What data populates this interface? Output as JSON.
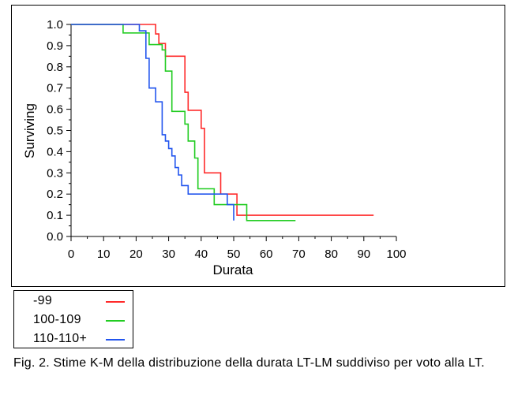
{
  "chart_data": {
    "type": "line",
    "step": true,
    "xlabel": "Durata",
    "ylabel": "Surviving",
    "xlim": [
      0,
      100
    ],
    "ylim": [
      0,
      1
    ],
    "x_ticks": [
      "0",
      "10",
      "20",
      "30",
      "40",
      "50",
      "60",
      "70",
      "80",
      "90",
      "100"
    ],
    "y_ticks": [
      "0.0",
      "0.1",
      "0.2",
      "0.3",
      "0.4",
      "0.5",
      "0.6",
      "0.7",
      "0.8",
      "0.9",
      "1.0"
    ],
    "grid": false,
    "legend_position": "below",
    "series": [
      {
        "name": "-99",
        "color": "#ff2a2a",
        "points": [
          [
            0,
            1.0
          ],
          [
            26,
            1.0
          ],
          [
            26,
            0.955
          ],
          [
            27,
            0.955
          ],
          [
            27,
            0.91
          ],
          [
            29,
            0.91
          ],
          [
            29,
            0.85
          ],
          [
            35,
            0.85
          ],
          [
            35,
            0.68
          ],
          [
            36,
            0.68
          ],
          [
            36,
            0.595
          ],
          [
            40,
            0.595
          ],
          [
            40,
            0.51
          ],
          [
            41,
            0.51
          ],
          [
            41,
            0.3
          ],
          [
            46,
            0.3
          ],
          [
            46,
            0.2
          ],
          [
            51,
            0.2
          ],
          [
            51,
            0.1
          ],
          [
            93,
            0.1
          ]
        ]
      },
      {
        "name": "100-109",
        "color": "#22cc22",
        "points": [
          [
            0,
            1.0
          ],
          [
            16,
            1.0
          ],
          [
            16,
            0.96
          ],
          [
            24,
            0.96
          ],
          [
            24,
            0.905
          ],
          [
            28,
            0.905
          ],
          [
            28,
            0.88
          ],
          [
            29,
            0.88
          ],
          [
            29,
            0.78
          ],
          [
            31,
            0.78
          ],
          [
            31,
            0.59
          ],
          [
            35,
            0.59
          ],
          [
            35,
            0.53
          ],
          [
            36,
            0.53
          ],
          [
            36,
            0.45
          ],
          [
            38,
            0.45
          ],
          [
            38,
            0.37
          ],
          [
            39,
            0.37
          ],
          [
            39,
            0.225
          ],
          [
            44,
            0.225
          ],
          [
            44,
            0.15
          ],
          [
            54,
            0.15
          ],
          [
            54,
            0.075
          ],
          [
            69,
            0.075
          ]
        ]
      },
      {
        "name": "110-110+",
        "color": "#2255ee",
        "points": [
          [
            0,
            1.0
          ],
          [
            21,
            1.0
          ],
          [
            21,
            0.97
          ],
          [
            23,
            0.97
          ],
          [
            23,
            0.84
          ],
          [
            24,
            0.84
          ],
          [
            24,
            0.7
          ],
          [
            26,
            0.7
          ],
          [
            26,
            0.635
          ],
          [
            28,
            0.635
          ],
          [
            28,
            0.48
          ],
          [
            29,
            0.48
          ],
          [
            29,
            0.45
          ],
          [
            30,
            0.45
          ],
          [
            30,
            0.415
          ],
          [
            31,
            0.415
          ],
          [
            31,
            0.38
          ],
          [
            32,
            0.38
          ],
          [
            32,
            0.325
          ],
          [
            33,
            0.325
          ],
          [
            33,
            0.29
          ],
          [
            34,
            0.29
          ],
          [
            34,
            0.24
          ],
          [
            36,
            0.24
          ],
          [
            36,
            0.2
          ],
          [
            48,
            0.2
          ],
          [
            48,
            0.15
          ],
          [
            50,
            0.15
          ],
          [
            50,
            0.075
          ]
        ]
      }
    ]
  },
  "legend": {
    "items": [
      {
        "label": "-99",
        "color": "#ff2a2a"
      },
      {
        "label": "100-109",
        "color": "#22cc22"
      },
      {
        "label": "110-110+",
        "color": "#2255ee"
      }
    ]
  },
  "caption": {
    "text": "Fig. 2. Stime K-M della distribuzione della durata LT-LM suddiviso per voto alla LT."
  }
}
